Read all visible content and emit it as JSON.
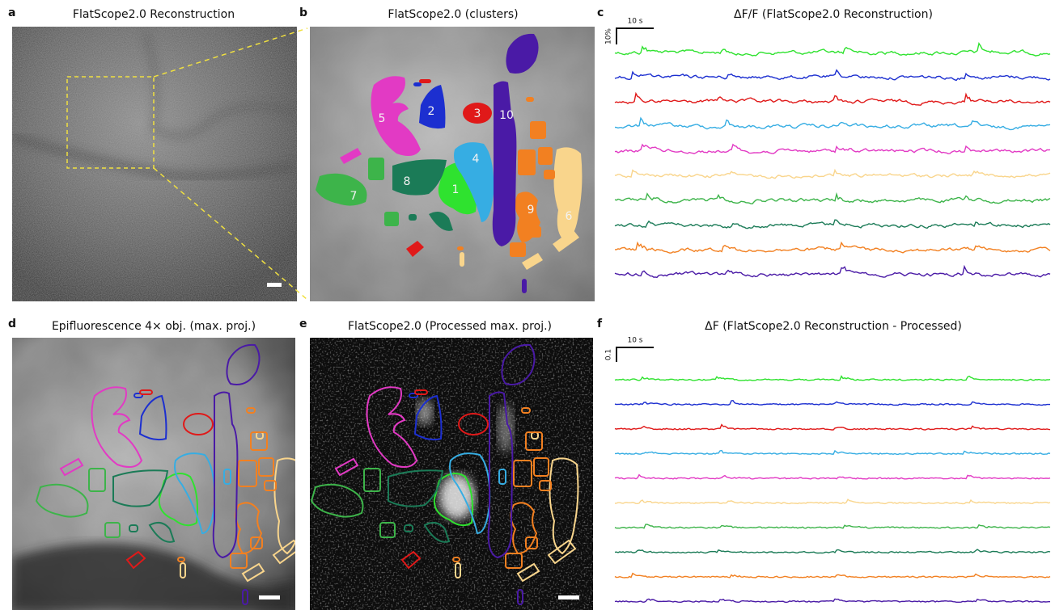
{
  "panels": {
    "a": {
      "label": "a",
      "title": "FlatScope2.0 Reconstruction"
    },
    "b": {
      "label": "b",
      "title": "FlatScope2.0 (clusters)",
      "clusters": [
        {
          "label": "1",
          "color": "#2fe22f"
        },
        {
          "label": "2",
          "color": "#1c2fd0"
        },
        {
          "label": "3",
          "color": "#e01919"
        },
        {
          "label": "4",
          "color": "#36ade3"
        },
        {
          "label": "5",
          "color": "#e23ac4"
        },
        {
          "label": "6",
          "color": "#f9d58c"
        },
        {
          "label": "7",
          "color": "#3db44a"
        },
        {
          "label": "8",
          "color": "#1b7b57"
        },
        {
          "label": "9",
          "color": "#f28021"
        },
        {
          "label": "10",
          "color": "#4a1aa6"
        }
      ]
    },
    "c": {
      "label": "c",
      "title": "ΔF/F (FlatScope2.0 Reconstruction)",
      "time_scale": "10 s",
      "amplitude_scale": "10%"
    },
    "d": {
      "label": "d",
      "title": "Epifluorescence 4× obj. (max. proj.)"
    },
    "e": {
      "label": "e",
      "title": "FlatScope2.0 (Processed max. proj.)"
    },
    "f": {
      "label": "f",
      "title": "ΔF (FlatScope2.0 Reconstruction - Processed)",
      "time_scale": "10 s",
      "amplitude_scale": "0.1"
    }
  }
}
